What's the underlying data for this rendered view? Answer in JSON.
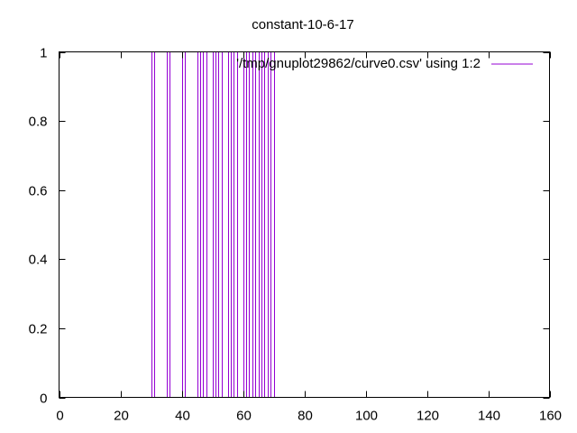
{
  "chart_data": {
    "type": "impulse",
    "title": "constant-10-6-17",
    "xlabel": "",
    "ylabel": "",
    "xlim": [
      0,
      160
    ],
    "ylim": [
      0,
      1
    ],
    "xticks": [
      0,
      20,
      40,
      60,
      80,
      100,
      120,
      140,
      160
    ],
    "yticks": [
      0,
      0.2,
      0.4,
      0.6,
      0.8,
      1
    ],
    "ytick_labels": [
      "0",
      "0.2",
      "0.4",
      "0.6",
      "0.8",
      "1"
    ],
    "grid": false,
    "legend_position": "top-right",
    "series": [
      {
        "name": "'/tmp/gnuplot29862/curve0.csv' using 1:2",
        "color": "#9400d3",
        "x": [
          30,
          31,
          35,
          36,
          40,
          41,
          45,
          46,
          47,
          48,
          50,
          51,
          52,
          53,
          55,
          56,
          57,
          58,
          60,
          61,
          62,
          63,
          64,
          65,
          66,
          67,
          68,
          69,
          70
        ],
        "y": [
          1,
          1,
          1,
          1,
          1,
          1,
          1,
          1,
          1,
          1,
          1,
          1,
          1,
          1,
          1,
          1,
          1,
          1,
          1,
          1,
          1,
          1,
          1,
          1,
          1,
          1,
          1,
          1,
          1
        ]
      }
    ]
  }
}
